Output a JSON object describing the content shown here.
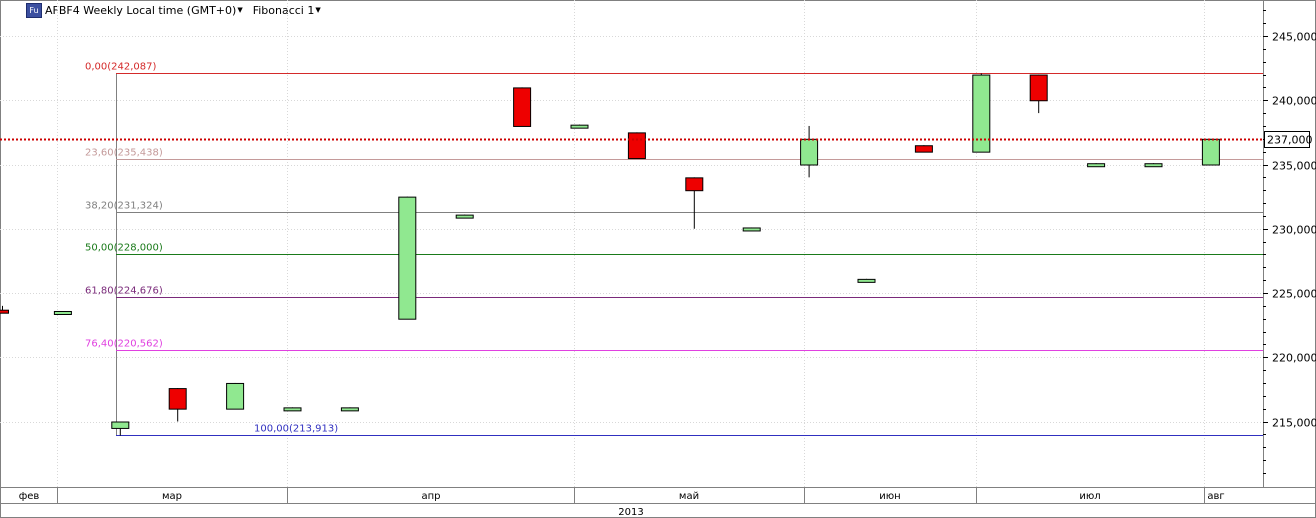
{
  "header": {
    "badge": "Fu",
    "title": "AFBF4 Weekly Local time (GMT+0)",
    "indicator": "Fibonacci 1"
  },
  "colors": {
    "bull": "#90e890",
    "bear": "#ee0000",
    "current_price_line": "#cc0000",
    "grid": "#d8d8d8"
  },
  "chart_data": {
    "type": "candlestick",
    "ylim": [
      208000,
      248000
    ],
    "y_ticks": [
      "215,000",
      "220,000",
      "225,000",
      "230,000",
      "235,000",
      "240,000",
      "245,000"
    ],
    "y_tick_values": [
      215000,
      220000,
      225000,
      230000,
      235000,
      240000,
      245000
    ],
    "current_price": {
      "label": "237,000",
      "value": 237000
    },
    "x_months": [
      {
        "label": "фев"
      },
      {
        "label": "мар"
      },
      {
        "label": "апр"
      },
      {
        "label": "май"
      },
      {
        "label": "июн"
      },
      {
        "label": "июл"
      },
      {
        "label": "авг"
      }
    ],
    "year": "2013",
    "candles": [
      {
        "o": 223700,
        "h": 224000,
        "l": 223400,
        "c": 223700,
        "dir": "bear"
      },
      {
        "o": 223400,
        "h": 223600,
        "l": 223400,
        "c": 223600,
        "dir": "bull"
      },
      {
        "o": 214500,
        "h": 215000,
        "l": 213900,
        "c": 215000,
        "dir": "bull"
      },
      {
        "o": 217600,
        "h": 217600,
        "l": 215000,
        "c": 216000,
        "dir": "bear"
      },
      {
        "o": 216000,
        "h": 218000,
        "l": 216000,
        "c": 218000,
        "dir": "bull"
      },
      {
        "o": 216000,
        "h": 216100,
        "l": 216000,
        "c": 216100,
        "dir": "bull"
      },
      {
        "o": 216000,
        "h": 216100,
        "l": 216000,
        "c": 216100,
        "dir": "bull"
      },
      {
        "o": 223000,
        "h": 232500,
        "l": 223000,
        "c": 232500,
        "dir": "bull"
      },
      {
        "o": 231000,
        "h": 231100,
        "l": 231000,
        "c": 231100,
        "dir": "bull"
      },
      {
        "o": 241000,
        "h": 241000,
        "l": 238000,
        "c": 238000,
        "dir": "bear"
      },
      {
        "o": 238000,
        "h": 238100,
        "l": 238000,
        "c": 238100,
        "dir": "bull"
      },
      {
        "o": 237500,
        "h": 237500,
        "l": 235500,
        "c": 235500,
        "dir": "bear"
      },
      {
        "o": 234000,
        "h": 234000,
        "l": 230000,
        "c": 233000,
        "dir": "bear"
      },
      {
        "o": 230000,
        "h": 230100,
        "l": 230000,
        "c": 230100,
        "dir": "bull"
      },
      {
        "o": 235000,
        "h": 238000,
        "l": 234000,
        "c": 237000,
        "dir": "bull"
      },
      {
        "o": 226000,
        "h": 226100,
        "l": 226000,
        "c": 226100,
        "dir": "bull"
      },
      {
        "o": 236500,
        "h": 236500,
        "l": 236000,
        "c": 236000,
        "dir": "bear"
      },
      {
        "o": 236000,
        "h": 242087,
        "l": 236000,
        "c": 242000,
        "dir": "bull"
      },
      {
        "o": 242000,
        "h": 242000,
        "l": 239000,
        "c": 240000,
        "dir": "bear"
      },
      {
        "o": 235000,
        "h": 235100,
        "l": 235000,
        "c": 235100,
        "dir": "bull"
      },
      {
        "o": 235000,
        "h": 235100,
        "l": 235000,
        "c": 235100,
        "dir": "bull"
      },
      {
        "o": 235000,
        "h": 237000,
        "l": 235000,
        "c": 237000,
        "dir": "bull"
      }
    ],
    "fib_levels": [
      {
        "label": "0,00(242,087)",
        "value": 242087,
        "color": "#d42a2a"
      },
      {
        "label": "23,60(235,438)",
        "value": 235438,
        "color": "#c49a9a"
      },
      {
        "label": "38,20(231,324)",
        "value": 231324,
        "color": "#808080"
      },
      {
        "label": "50,00(228,000)",
        "value": 228000,
        "color": "#1a7a1a"
      },
      {
        "label": "61,80(224,676)",
        "value": 224676,
        "color": "#7a2a7a"
      },
      {
        "label": "76,40(220,562)",
        "value": 220562,
        "color": "#e040e0"
      },
      {
        "label": "100,00(213,913)",
        "value": 213913,
        "color": "#3030c0"
      }
    ]
  }
}
